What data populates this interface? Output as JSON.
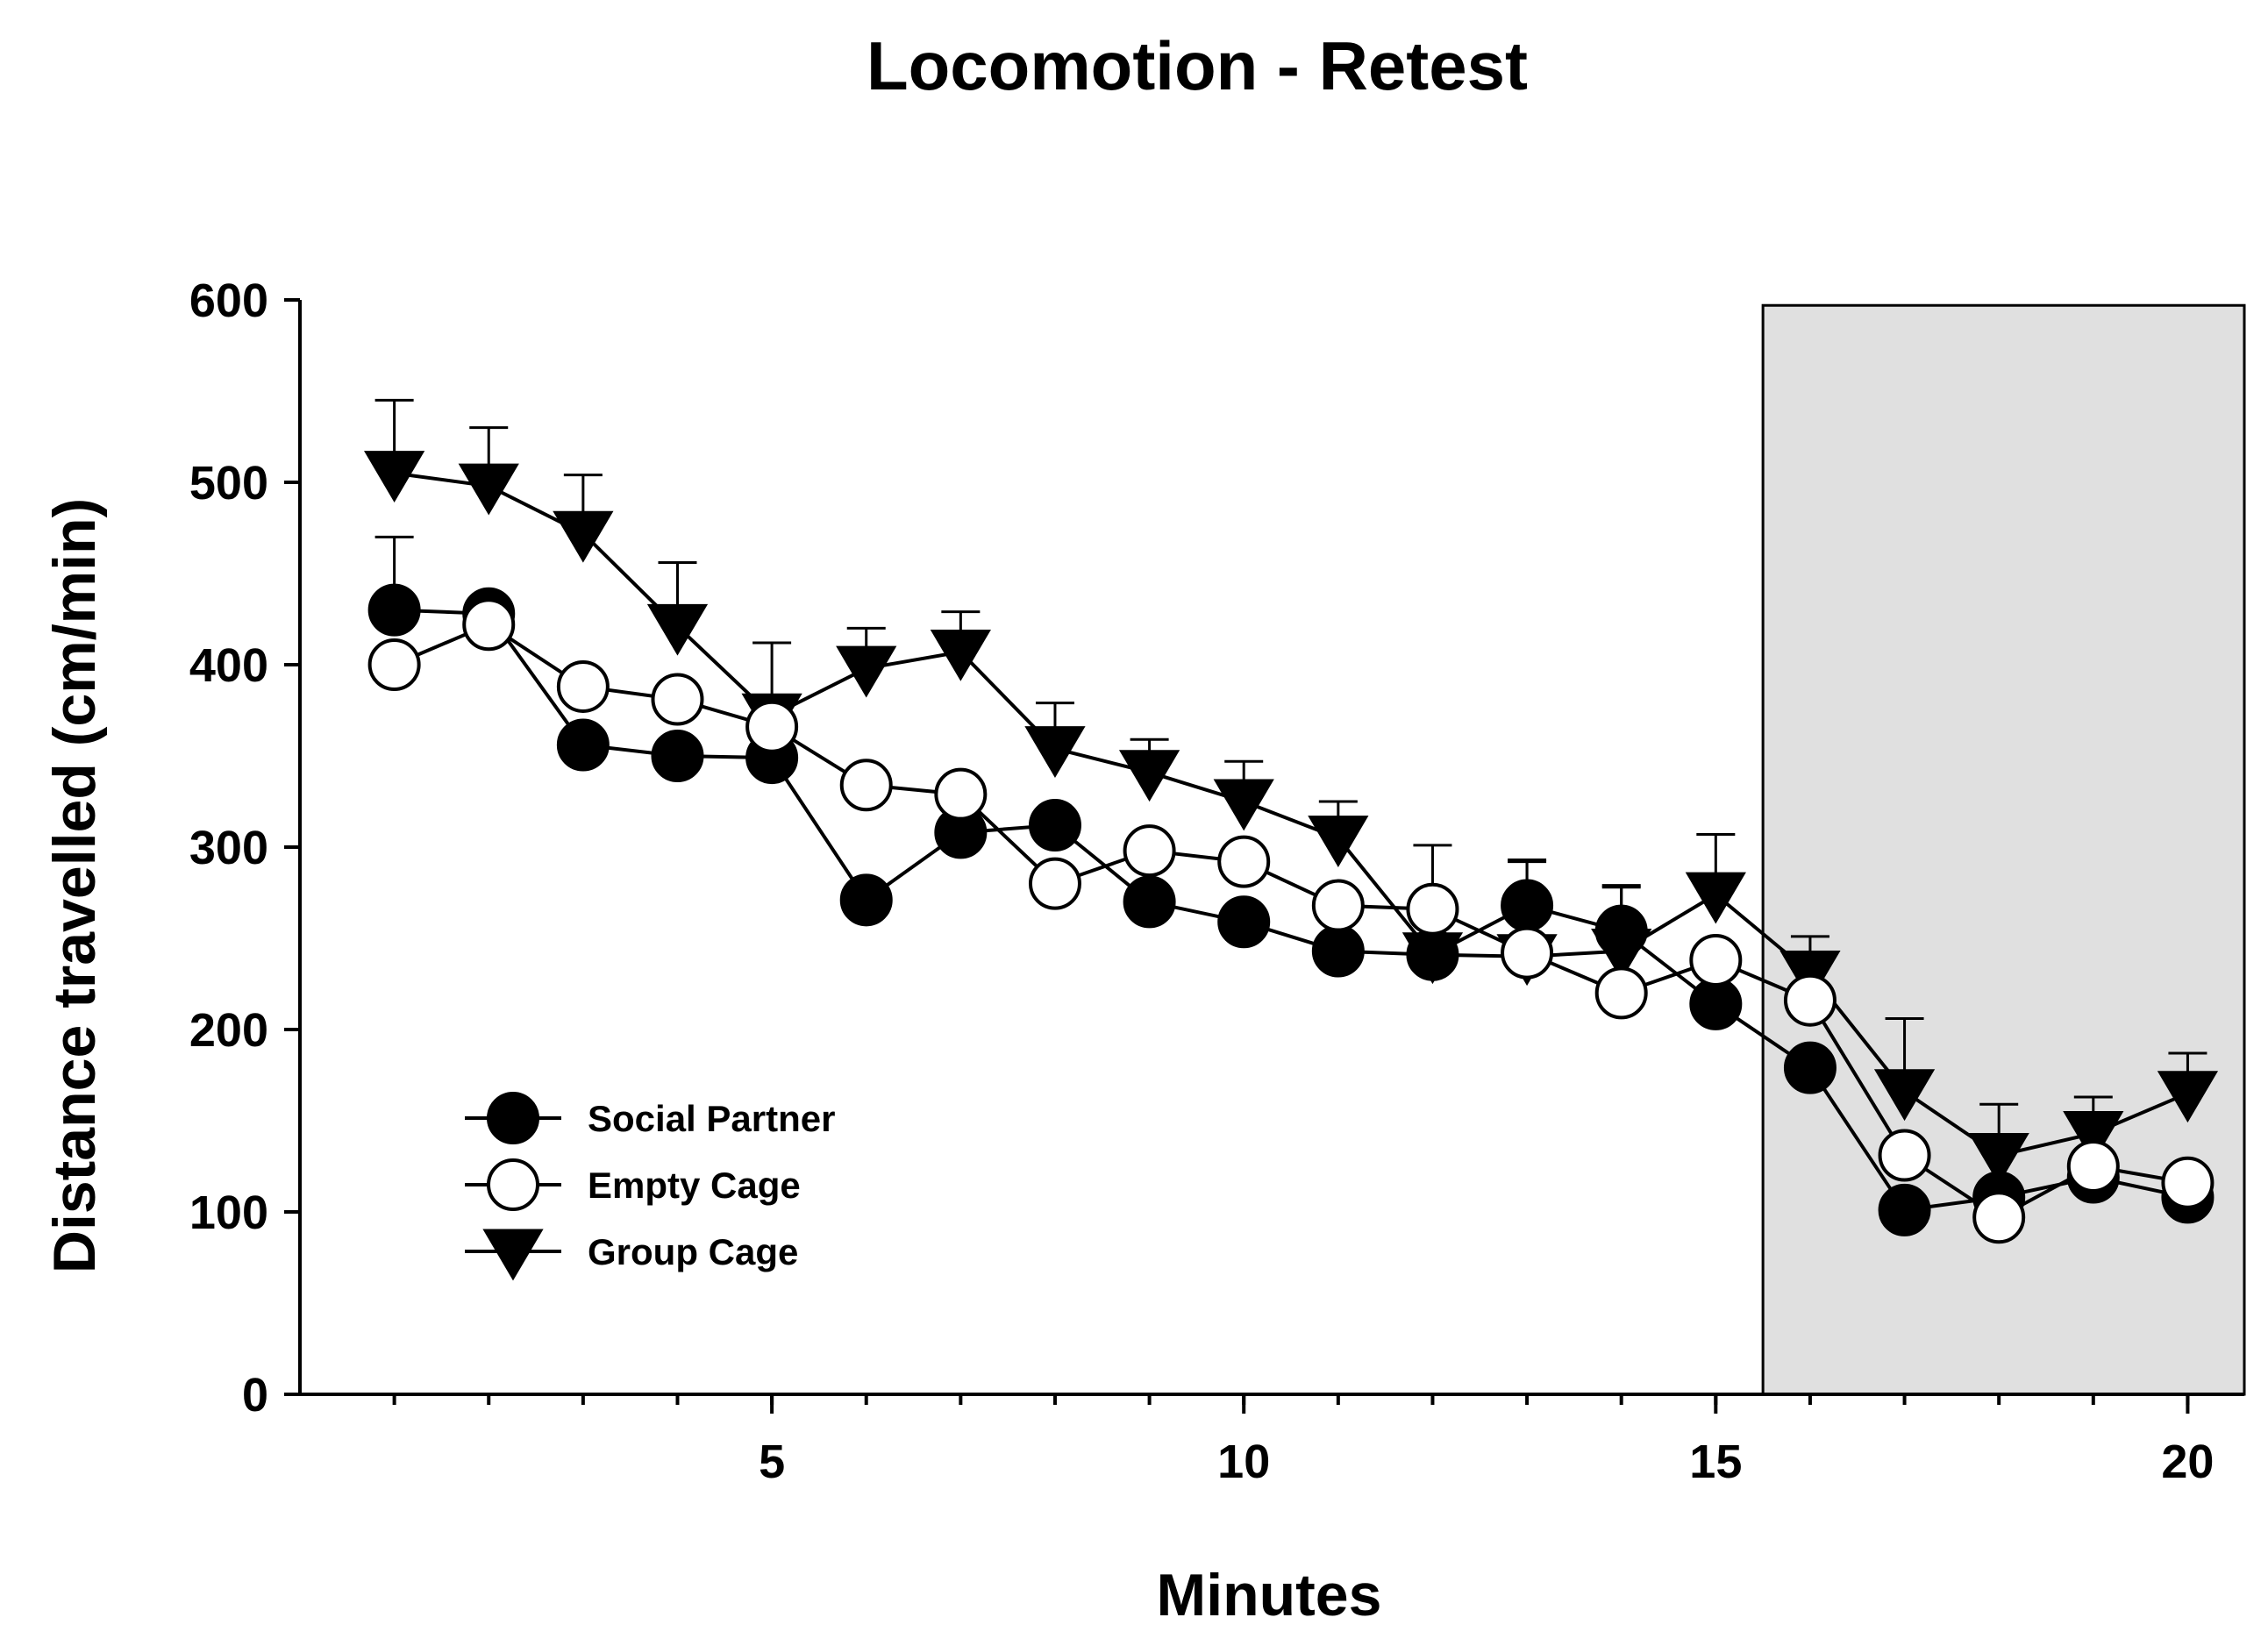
{
  "chart_data": {
    "type": "line",
    "title": "Locomotion -  Retest",
    "xlabel": "Minutes",
    "ylabel": "Distance travelled (cm/min)",
    "xlim": [
      0,
      20.6
    ],
    "ylim": [
      0,
      600
    ],
    "x_ticks": [
      5,
      10,
      15,
      20
    ],
    "x_minor_ticks": [
      1,
      2,
      3,
      4,
      5,
      6,
      7,
      8,
      9,
      10,
      11,
      12,
      13,
      14,
      15,
      16,
      17,
      18,
      19,
      20
    ],
    "y_ticks": [
      0,
      100,
      200,
      300,
      400,
      500,
      600
    ],
    "shaded_region": {
      "x_start": 15.5,
      "x_end": 20.6,
      "y_start": 0,
      "y_end": 597,
      "color": "#e0e0e0"
    },
    "legend_position": "lower-left",
    "x": [
      1,
      2,
      3,
      4,
      5,
      6,
      7,
      8,
      9,
      10,
      11,
      12,
      13,
      14,
      15,
      16,
      17,
      18,
      19,
      20
    ],
    "series": [
      {
        "name": "Social Partner",
        "marker": "filled-circle",
        "values": [
          430,
          428,
          356,
          350,
          349,
          271,
          308,
          312,
          270,
          259,
          243,
          241,
          268,
          254,
          214,
          179,
          101,
          108,
          119,
          108
        ],
        "errors": [
          40,
          0,
          0,
          0,
          0,
          0,
          0,
          0,
          0,
          0,
          0,
          0,
          25,
          25,
          0,
          0,
          0,
          0,
          0,
          0
        ]
      },
      {
        "name": "Empty Cage",
        "marker": "open-circle",
        "values": [
          400,
          422,
          388,
          381,
          366,
          334,
          329,
          280,
          298,
          292,
          268,
          266,
          242,
          220,
          238,
          216,
          131,
          97,
          125,
          116
        ],
        "errors": [
          0,
          0,
          0,
          0,
          0,
          0,
          0,
          0,
          0,
          0,
          0,
          0,
          0,
          0,
          0,
          0,
          0,
          0,
          0,
          0
        ]
      },
      {
        "name": "Group Cage",
        "marker": "filled-triangle-down",
        "values": [
          505,
          498,
          472,
          421,
          372,
          398,
          407,
          354,
          341,
          325,
          305,
          241,
          240,
          243,
          274,
          231,
          166,
          131,
          143,
          165
        ],
        "errors": [
          40,
          32,
          32,
          35,
          40,
          22,
          22,
          25,
          18,
          22,
          20,
          60,
          52,
          35,
          33,
          20,
          40,
          28,
          20,
          22
        ]
      }
    ]
  }
}
